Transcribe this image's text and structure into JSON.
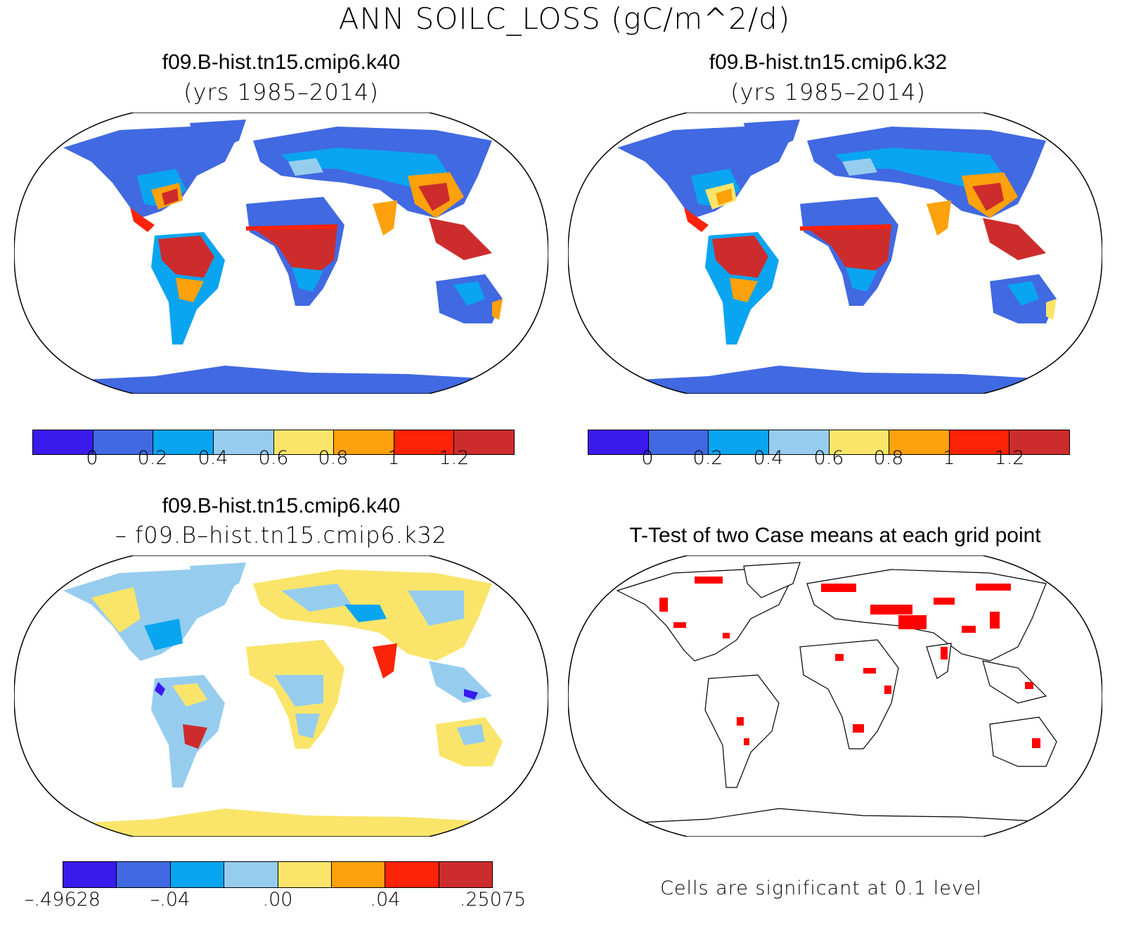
{
  "figure": {
    "title": "ANN SOILC_LOSS (gC/m^2/d)"
  },
  "colors": {
    "abs_palette": [
      "#3b1aee",
      "#4169e1",
      "#0aa5f0",
      "#96cdef",
      "#fae56a",
      "#fda10c",
      "#fb2308",
      "#cd2c2c"
    ],
    "diff_palette": [
      "#3b1aee",
      "#4169e1",
      "#0aa5f0",
      "#96cdef",
      "#fae56a",
      "#fda10c",
      "#fb2308",
      "#cd2c2c"
    ],
    "land_low": "#4169e1",
    "significant": "#ff0000"
  },
  "panels": {
    "top_left": {
      "title": "f09.B-hist.tn15.cmip6.k40",
      "subtitle": "(yrs 1985–2014)"
    },
    "top_right": {
      "title": "f09.B-hist.tn15.cmip6.k32",
      "subtitle": "(yrs 1985–2014)"
    },
    "bottom_left": {
      "title": "f09.B-hist.tn15.cmip6.k40",
      "subtitle": "– f09.B–hist.tn15.cmip6.k32"
    },
    "bottom_right": {
      "title": "T-Test of two Case means at each grid point",
      "note": "Cells are significant at 0.1 level"
    }
  },
  "colorbars": {
    "abs_ticks": [
      "0",
      "0.2",
      "0.4",
      "0.6",
      "0.8",
      "1",
      "1.2"
    ],
    "diff_ticks": [
      "–.49628",
      "–.04",
      ".00",
      ".04",
      ".25075"
    ]
  },
  "chart_data": [
    {
      "type": "heatmap",
      "name": "f09.B-hist.tn15.cmip6.k40",
      "levels": [
        0,
        0.2,
        0.4,
        0.6,
        0.8,
        1,
        1.2
      ]
    },
    {
      "type": "heatmap",
      "name": "f09.B-hist.tn15.cmip6.k32",
      "levels": [
        0,
        0.2,
        0.4,
        0.6,
        0.8,
        1,
        1.2
      ]
    },
    {
      "type": "heatmap",
      "name": "f09.B-hist.tn15.cmip6.k40 – f09.B–hist.tn15.cmip6.k32",
      "levels": [
        -0.49628,
        -0.04,
        0.0,
        0.04,
        0.25075
      ]
    }
  ]
}
